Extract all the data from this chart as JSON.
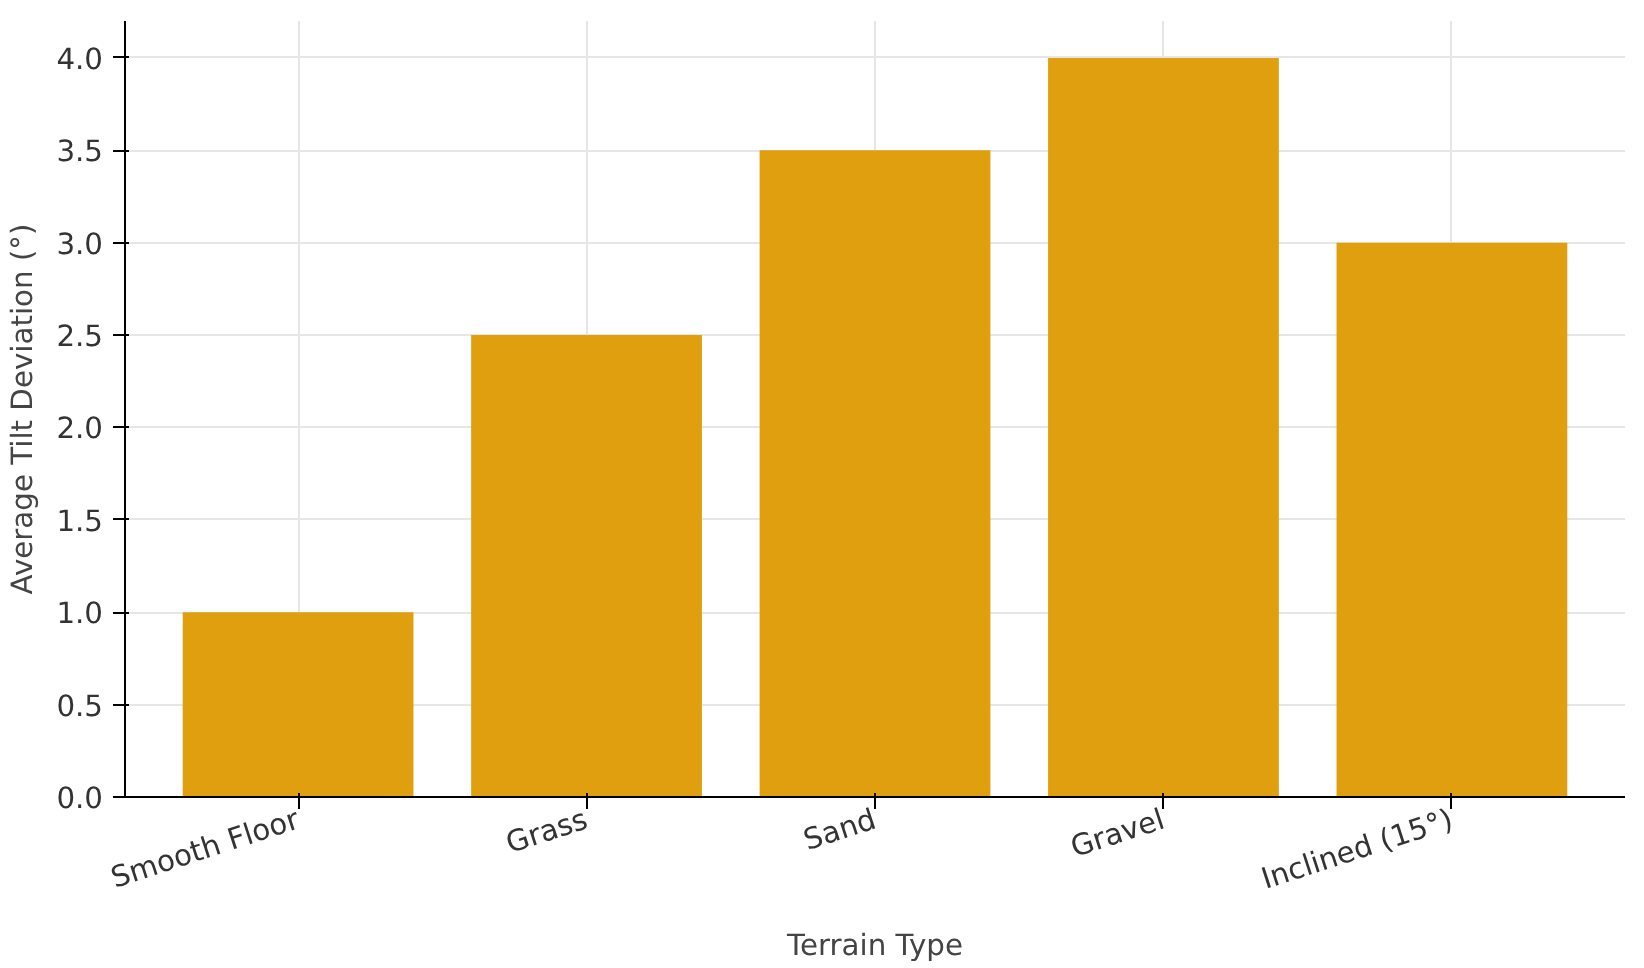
{
  "chart_data": {
    "type": "bar",
    "xlabel": "Terrain Type",
    "ylabel": "Average Tilt Deviation (°)",
    "categories": [
      "Smooth Floor",
      "Grass",
      "Sand",
      "Gravel",
      "Inclined (15°)"
    ],
    "values": [
      1.0,
      2.5,
      3.5,
      4.0,
      3.0
    ],
    "color": "#e09f0e",
    "ylim": [
      0,
      4.2
    ],
    "yticks": [
      {
        "value": 0,
        "label": "0.0"
      },
      {
        "value": 0.5,
        "label": "0.5"
      },
      {
        "value": 1,
        "label": "1.0"
      },
      {
        "value": 1.5,
        "label": "1.5"
      },
      {
        "value": 2,
        "label": "2.0"
      },
      {
        "value": 2.5,
        "label": "2.5"
      },
      {
        "value": 3,
        "label": "3.0"
      },
      {
        "value": 3.5,
        "label": "3.5"
      },
      {
        "value": 4,
        "label": "4.0"
      }
    ],
    "grid": true
  }
}
